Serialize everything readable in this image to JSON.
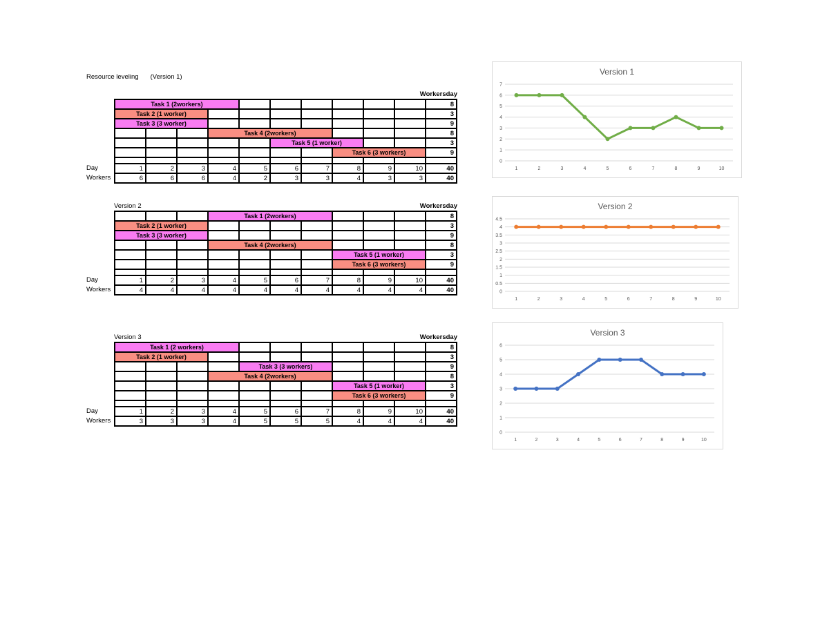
{
  "sheet": {
    "title": "Resource leveling",
    "title_suffix": "(Version 1)"
  },
  "colors": {
    "bar_magenta": "#F97CF2",
    "bar_salmon": "#F98E82",
    "table_border": "#000000",
    "chart_border": "#D9D9D9",
    "chart_gridline": "#D9D9D9",
    "chart_text": "#595959"
  },
  "tables": [
    {
      "version_label": "",
      "workers_day_header": "Workersday",
      "day_row_label": "Day",
      "workers_row_label": "Workers",
      "num_days": 10,
      "tasks": [
        {
          "label": "Task 1 (2workers)",
          "start_day": 1,
          "end_day": 4,
          "fill": "bar_magenta",
          "workers_day_total": "8"
        },
        {
          "label": "Task 2 (1 worker)",
          "start_day": 1,
          "end_day": 3,
          "fill": "bar_salmon",
          "workers_day_total": "3"
        },
        {
          "label": "Task 3 (3 worker)",
          "start_day": 1,
          "end_day": 3,
          "fill": "bar_magenta",
          "workers_day_total": "9"
        },
        {
          "label": "Task 4 (2workers)",
          "start_day": 4,
          "end_day": 7,
          "fill": "bar_salmon",
          "workers_day_total": "8"
        },
        {
          "label": "Task 5 (1 worker)",
          "start_day": 6,
          "end_day": 8,
          "fill": "bar_magenta",
          "workers_day_total": "3"
        },
        {
          "label": "Task 6 (3 workers)",
          "start_day": 8,
          "end_day": 10,
          "fill": "bar_salmon",
          "workers_day_total": "9"
        }
      ],
      "day_values": [
        "1",
        "2",
        "3",
        "4",
        "5",
        "6",
        "7",
        "8",
        "9",
        "10"
      ],
      "day_total": "40",
      "workers_values": [
        "6",
        "6",
        "6",
        "4",
        "2",
        "3",
        "3",
        "4",
        "3",
        "3"
      ],
      "workers_total": "40"
    },
    {
      "version_label": "Version 2",
      "workers_day_header": "Workersday",
      "day_row_label": "Day",
      "workers_row_label": "Workers",
      "num_days": 10,
      "tasks": [
        {
          "label": "Task 1 (2workers)",
          "start_day": 4,
          "end_day": 7,
          "fill": "bar_magenta",
          "workers_day_total": "8"
        },
        {
          "label": "Task 2 (1 worker)",
          "start_day": 1,
          "end_day": 3,
          "fill": "bar_salmon",
          "workers_day_total": "3"
        },
        {
          "label": "Task 3 (3 worker)",
          "start_day": 1,
          "end_day": 3,
          "fill": "bar_magenta",
          "workers_day_total": "9"
        },
        {
          "label": "Task 4 (2workers)",
          "start_day": 4,
          "end_day": 7,
          "fill": "bar_salmon",
          "workers_day_total": "8"
        },
        {
          "label": "Task 5 (1 worker)",
          "start_day": 8,
          "end_day": 10,
          "fill": "bar_magenta",
          "workers_day_total": "3"
        },
        {
          "label": "Task 6 (3 workers)",
          "start_day": 8,
          "end_day": 10,
          "fill": "bar_salmon",
          "workers_day_total": "9"
        }
      ],
      "day_values": [
        "1",
        "2",
        "3",
        "4",
        "5",
        "6",
        "7",
        "8",
        "9",
        "10"
      ],
      "day_total": "40",
      "workers_values": [
        "4",
        "4",
        "4",
        "4",
        "4",
        "4",
        "4",
        "4",
        "4",
        "4"
      ],
      "workers_total": "40"
    },
    {
      "version_label": "Version 3",
      "workers_day_header": "Workersday",
      "day_row_label": "Day",
      "workers_row_label": "Workers",
      "num_days": 10,
      "tasks": [
        {
          "label": "Task 1 (2 workers)",
          "start_day": 1,
          "end_day": 4,
          "fill": "bar_magenta",
          "workers_day_total": "8"
        },
        {
          "label": "Task 2 (1 worker)",
          "start_day": 1,
          "end_day": 3,
          "fill": "bar_salmon",
          "workers_day_total": "3"
        },
        {
          "label": "Task 3 (3 workers)",
          "start_day": 5,
          "end_day": 7,
          "fill": "bar_magenta",
          "workers_day_total": "9"
        },
        {
          "label": "Task 4 (2workers)",
          "start_day": 4,
          "end_day": 7,
          "fill": "bar_salmon",
          "workers_day_total": "8"
        },
        {
          "label": "Task 5 (1 worker)",
          "start_day": 8,
          "end_day": 10,
          "fill": "bar_magenta",
          "workers_day_total": "3"
        },
        {
          "label": "Task 6 (3 workers)",
          "start_day": 8,
          "end_day": 10,
          "fill": "bar_salmon",
          "workers_day_total": "9"
        }
      ],
      "day_values": [
        "1",
        "2",
        "3",
        "4",
        "5",
        "6",
        "7",
        "8",
        "9",
        "10"
      ],
      "day_total": "40",
      "workers_values": [
        "3",
        "3",
        "3",
        "4",
        "5",
        "5",
        "5",
        "4",
        "4",
        "4"
      ],
      "workers_total": "40"
    }
  ],
  "chart_data": [
    {
      "type": "line",
      "title": "Version 1",
      "x": [
        1,
        2,
        3,
        4,
        5,
        6,
        7,
        8,
        9,
        10
      ],
      "values": [
        6,
        6,
        6,
        4,
        2,
        3,
        3,
        4,
        3,
        3
      ],
      "xlabel": "",
      "ylabel": "",
      "ylim": [
        0,
        7
      ],
      "ytick_step": 1,
      "line_color": "#70AD47",
      "grid": true,
      "legend": "none",
      "marker": "circle"
    },
    {
      "type": "line",
      "title": "Version 2",
      "x": [
        1,
        2,
        3,
        4,
        5,
        6,
        7,
        8,
        9,
        10
      ],
      "values": [
        4,
        4,
        4,
        4,
        4,
        4,
        4,
        4,
        4,
        4
      ],
      "xlabel": "",
      "ylabel": "",
      "ylim": [
        0,
        4.5
      ],
      "ytick_step": 0.5,
      "line_color": "#ED7D31",
      "grid": true,
      "legend": "none",
      "marker": "circle"
    },
    {
      "type": "line",
      "title": "Version 3",
      "x": [
        1,
        2,
        3,
        4,
        5,
        6,
        7,
        8,
        9,
        10
      ],
      "values": [
        3,
        3,
        3,
        4,
        5,
        5,
        5,
        4,
        4,
        4
      ],
      "xlabel": "",
      "ylabel": "",
      "ylim": [
        0,
        6
      ],
      "ytick_step": 1,
      "line_color": "#4472C4",
      "grid": true,
      "legend": "none",
      "marker": "circle"
    }
  ]
}
